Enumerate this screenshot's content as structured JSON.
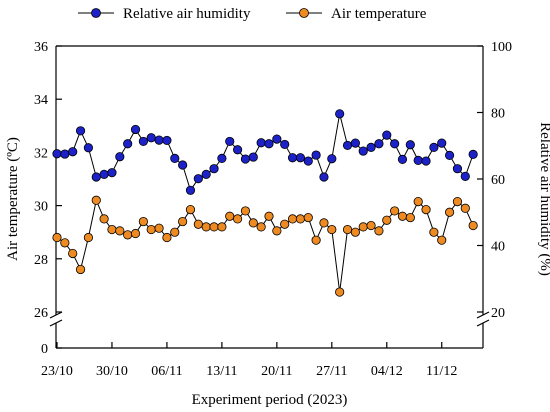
{
  "chart_data": {
    "type": "line",
    "xlabel": "Experiment period (2023)",
    "x_tick_labels": [
      "23/10",
      "30/10",
      "06/11",
      "13/11",
      "20/11",
      "27/11",
      "04/12",
      "11/12"
    ],
    "x_tick_days": [
      0,
      7,
      14,
      21,
      28,
      35,
      42,
      49
    ],
    "x_range_days": [
      0,
      54
    ],
    "left_axis": {
      "label": "Air temperature (ºC)",
      "ticks": [
        "0",
        "26",
        "28",
        "30",
        "32",
        "34",
        "36"
      ],
      "broken": true,
      "range": [
        26,
        36
      ]
    },
    "right_axis": {
      "label": "Relative air humidity (%)",
      "ticks": [
        "20",
        "40",
        "60",
        "80",
        "100"
      ],
      "broken": true,
      "range": [
        20,
        100
      ]
    },
    "legend": {
      "placement": "top-center",
      "entries": [
        "Relative air humidity",
        "Air temperature"
      ]
    },
    "series": [
      {
        "name": "Relative air humidity",
        "axis": "right",
        "color": "#1c22c8",
        "marker": "circle",
        "days": [
          0,
          1,
          2,
          3,
          4,
          5,
          6,
          7,
          8,
          9,
          10,
          11,
          12,
          13,
          14,
          15,
          16,
          17,
          18,
          19,
          20,
          21,
          22,
          23,
          24,
          25,
          26,
          27,
          28,
          29,
          30,
          31,
          32,
          33,
          34,
          35,
          36,
          37,
          38,
          39,
          40,
          41,
          42,
          43,
          44,
          45,
          46,
          47,
          48,
          49,
          50,
          51,
          52,
          53
        ],
        "values": [
          67.6,
          67.5,
          68.2,
          74.5,
          69.4,
          60.6,
          61.4,
          61.9,
          66.7,
          70.6,
          74.9,
          71.3,
          72.4,
          71.7,
          71.6,
          66.2,
          64.2,
          56.6,
          60.1,
          61.4,
          63.1,
          66.2,
          71.3,
          68.8,
          66,
          66.6,
          70.9,
          70.6,
          72,
          70.4,
          66.4,
          66.4,
          65.4,
          67.2,
          60.6,
          66.1,
          79.6,
          70.1,
          70.8,
          68.4,
          69.5,
          70.6,
          73.2,
          70.6,
          65.9,
          70.3,
          65.6,
          65.4,
          69.5,
          70.8,
          67.1,
          63.1,
          60.8,
          67.4
        ]
      },
      {
        "name": "Air temperature",
        "axis": "left",
        "color": "#ee8a22",
        "marker": "circle",
        "days": [
          0,
          1,
          2,
          3,
          4,
          5,
          6,
          7,
          8,
          9,
          10,
          11,
          12,
          13,
          14,
          15,
          16,
          17,
          18,
          19,
          20,
          21,
          22,
          23,
          24,
          25,
          26,
          27,
          28,
          29,
          30,
          31,
          32,
          33,
          34,
          35,
          36,
          37,
          38,
          39,
          40,
          41,
          42,
          43,
          44,
          45,
          46,
          47,
          48,
          49,
          50,
          51,
          52,
          53
        ],
        "values": [
          28.8,
          28.6,
          28.2,
          27.6,
          28.8,
          30.2,
          29.5,
          29.1,
          29.05,
          28.9,
          28.95,
          29.4,
          29.1,
          29.15,
          28.8,
          29.0,
          29.4,
          29.85,
          29.3,
          29.2,
          29.2,
          29.2,
          29.6,
          29.5,
          29.8,
          29.35,
          29.2,
          29.6,
          29.05,
          29.3,
          29.5,
          29.5,
          29.55,
          28.7,
          29.35,
          29.1,
          26.75,
          29.1,
          29.0,
          29.2,
          29.25,
          29.05,
          29.45,
          29.8,
          29.6,
          29.55,
          30.15,
          29.85,
          29.0,
          28.7,
          29.75,
          30.15,
          29.9,
          29.25
        ]
      }
    ]
  }
}
